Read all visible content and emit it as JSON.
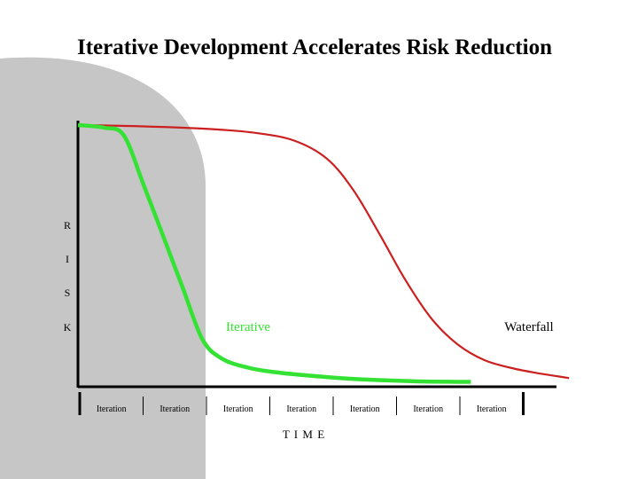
{
  "slide": {
    "title": "Iterative Development Accelerates Risk Reduction"
  },
  "colors": {
    "background_shape": "#c6c6c6",
    "iterative_line": "#33e233",
    "waterfall_line": "#cc1f1f",
    "axis": "#000000"
  },
  "chart_data": {
    "type": "line",
    "title": "",
    "xlabel": "T I M E",
    "ylabel": "R I S K",
    "ylabel_letters": [
      "R",
      "I",
      "S",
      "K"
    ],
    "x_tick_labels": [
      "Iteration",
      "Iteration",
      "Iteration",
      "Iteration",
      "Iteration",
      "Iteration",
      "Iteration"
    ],
    "xlim": [
      0,
      7.7
    ],
    "ylim": [
      0,
      100
    ],
    "grid": false,
    "series": [
      {
        "name": "Iterative",
        "color": "#33e233",
        "x": [
          0,
          0.4,
          0.7,
          1.0,
          1.3,
          1.6,
          1.9,
          2.2,
          2.6,
          3.0,
          3.5,
          4.0,
          4.6,
          5.2,
          5.8,
          6.0
        ],
        "y": [
          100,
          99,
          96,
          77,
          57,
          37,
          17,
          9.5,
          6,
          4.3,
          3,
          2,
          1.2,
          0.7,
          0.5,
          0.5
        ]
      },
      {
        "name": "Waterfall",
        "color": "#cc1f1f",
        "x": [
          0,
          1.0,
          2.0,
          2.7,
          3.3,
          3.8,
          4.2,
          4.6,
          5.0,
          5.4,
          5.8,
          6.2,
          6.6,
          7.0,
          7.5
        ],
        "y": [
          100,
          99.5,
          98.5,
          97,
          94,
          87,
          75,
          58,
          40,
          25,
          15,
          9,
          6,
          4,
          2
        ]
      }
    ]
  }
}
